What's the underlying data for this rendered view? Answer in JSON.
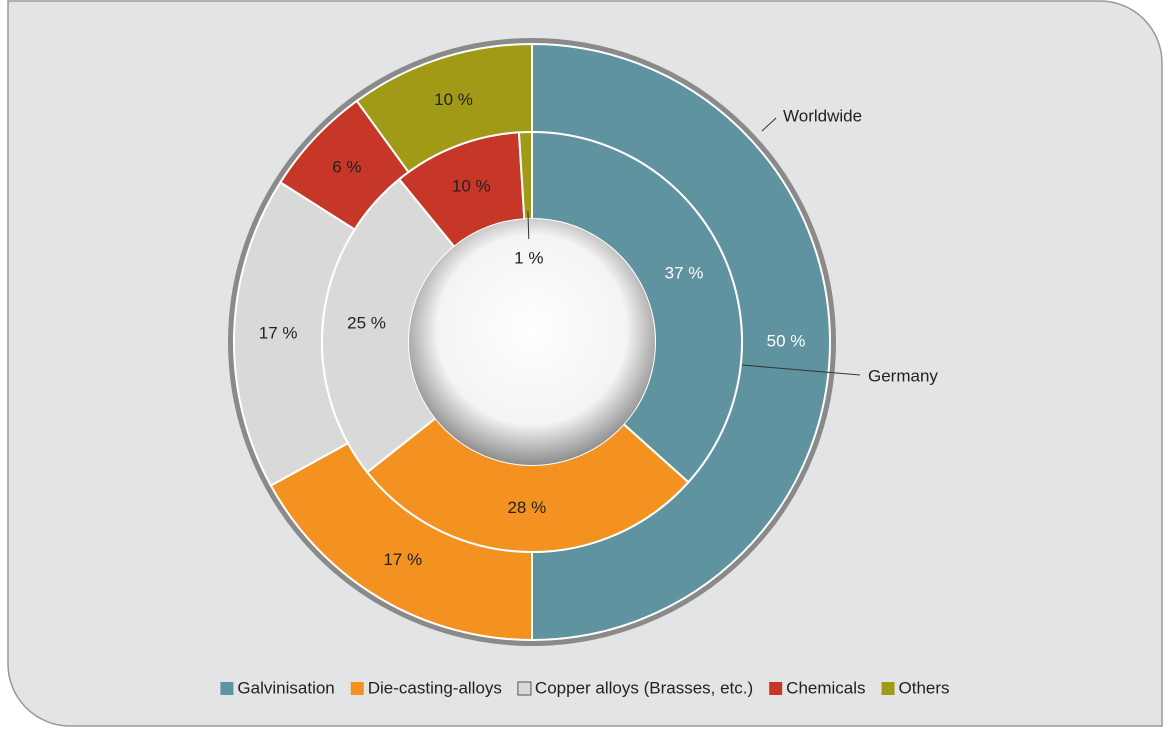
{
  "chart_data": {
    "type": "donut",
    "categories": [
      "Galvinisation",
      "Die-casting-alloys",
      "Copper alloys (Brasses, etc.)",
      "Chemicals",
      "Others"
    ],
    "colors": [
      "#5f939f",
      "#f39221",
      "#d9d9d9",
      "#c63727",
      "#a09a17"
    ],
    "series": [
      {
        "name": "Worldwide",
        "values": [
          50,
          17,
          17,
          6,
          10
        ],
        "value_labels": [
          "50 %",
          "17 %",
          "17 %",
          "6 %",
          "10 %"
        ]
      },
      {
        "name": "Germany",
        "values": [
          37,
          28,
          25,
          10,
          1
        ],
        "value_labels": [
          "37 %",
          "28 %",
          "25 %",
          "10 %",
          "1 %"
        ]
      }
    ],
    "legend": "bottom"
  }
}
